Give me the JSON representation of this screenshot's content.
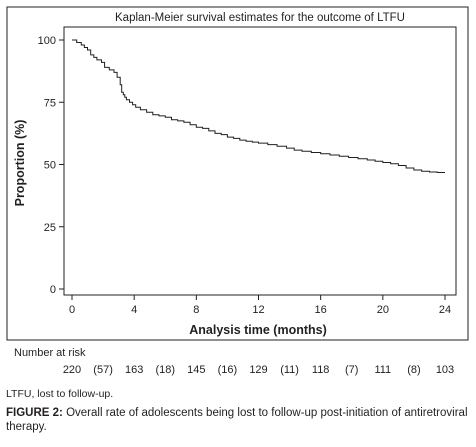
{
  "chart_data": {
    "type": "line",
    "title": "Kaplan-Meier survival estimates for the outcome of LTFU",
    "xlabel": "Analysis time (months)",
    "ylabel": "Proportion (%)",
    "xlim": [
      0,
      24
    ],
    "ylim": [
      0,
      100
    ],
    "xticks": [
      0,
      4,
      8,
      12,
      16,
      20,
      24
    ],
    "yticks": [
      0,
      25,
      50,
      75,
      100
    ],
    "grid": false,
    "series": [
      {
        "x": [
          0,
          0.3,
          0.6,
          0.8,
          1.0,
          1.2,
          1.4,
          1.6,
          1.9,
          2.1,
          2.4,
          2.7,
          2.9,
          3.1,
          3.2,
          3.3,
          3.4,
          3.5,
          3.7,
          3.9,
          4.1,
          4.4,
          4.8,
          5.2,
          5.6,
          6.0,
          6.4,
          6.8,
          7.2,
          7.6,
          8.0,
          8.4,
          8.8,
          9.2,
          9.6,
          10.0,
          10.4,
          10.8,
          11.2,
          11.6,
          12.0,
          12.6,
          13.2,
          13.8,
          14.3,
          14.8,
          15.4,
          16.0,
          16.6,
          17.2,
          17.8,
          18.4,
          19.0,
          19.5,
          20.0,
          20.5,
          21.0,
          21.5,
          22.0,
          22.5,
          23.0,
          23.5,
          24.0
        ],
        "y": [
          100,
          99,
          98,
          97,
          96,
          94,
          93,
          92,
          91,
          89,
          88,
          87,
          85,
          82,
          79,
          78,
          77,
          76,
          75,
          74,
          73,
          72,
          71,
          70,
          69.5,
          69,
          68,
          67.5,
          67,
          66,
          65,
          64.5,
          63.5,
          62.5,
          62,
          61,
          60.5,
          59.8,
          59.3,
          59,
          58.6,
          58,
          57.3,
          56.6,
          55.8,
          55.3,
          54.8,
          54.3,
          53.8,
          53.3,
          52.8,
          52.3,
          51.8,
          51.3,
          50.8,
          50.3,
          49.6,
          48.6,
          47.8,
          47.3,
          47.0,
          46.8,
          46.8
        ]
      }
    ],
    "risk_table": {
      "label": "Number at risk",
      "entries": [
        {
          "x": 0,
          "at_risk": "220",
          "censored": "(57)"
        },
        {
          "x": 4,
          "at_risk": "163",
          "censored": "(18)"
        },
        {
          "x": 8,
          "at_risk": "145",
          "censored": "(16)"
        },
        {
          "x": 12,
          "at_risk": "129",
          "censored": "(11)"
        },
        {
          "x": 16,
          "at_risk": "118",
          "censored": "(7)"
        },
        {
          "x": 20,
          "at_risk": "111",
          "censored": "(8)"
        },
        {
          "x": 24,
          "at_risk": "103",
          "censored": ""
        }
      ]
    },
    "line_color": "#231f20"
  },
  "footnote": "LTFU, lost to follow-up.",
  "caption": {
    "label": "FIGURE 2:",
    "text": " Overall rate of adolescents being lost to follow-up post-initiation of antiretroviral therapy."
  }
}
